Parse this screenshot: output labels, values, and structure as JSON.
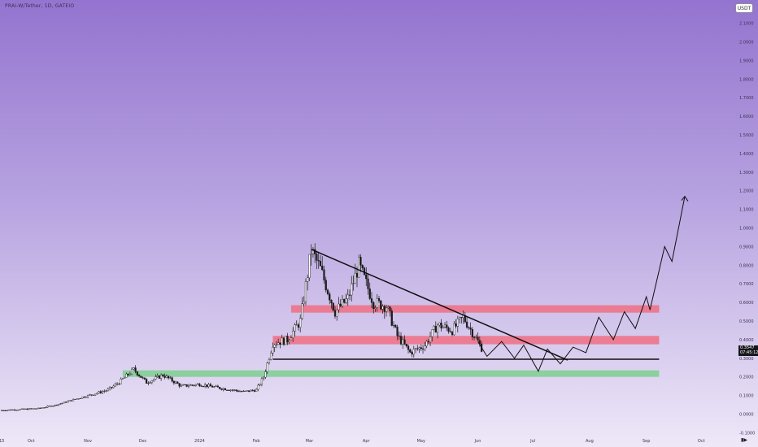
{
  "header": {
    "symbol_title": "PRAI-W/Tether, 1D, GATEIO"
  },
  "currency_button": {
    "label": "USDT"
  },
  "last_price": {
    "value": "0.3547",
    "countdown": "07:45:12"
  },
  "colors": {
    "candle": "#1a1a1a",
    "resistance_zone": "#ee6f82",
    "support_zone": "#7dcf8f",
    "trendline": "#101010",
    "projection": "#101010"
  },
  "chart_data": {
    "type": "candlestick",
    "title": "",
    "xlabel": "",
    "ylabel": "",
    "ylim": [
      -0.1,
      2.15
    ],
    "y_ticks": [
      "-0.1000",
      "0.0000",
      "0.1000",
      "0.2000",
      "0.3000",
      "0.4000",
      "0.5000",
      "0.6000",
      "0.7000",
      "0.8000",
      "0.9000",
      "1.0000",
      "1.1000",
      "1.2000",
      "1.3000",
      "1.4000",
      "1.5000",
      "1.6000",
      "1.7000",
      "1.8000",
      "1.9000",
      "2.0000",
      "2.1000"
    ],
    "x_ticks": [
      {
        "label": "15",
        "date": "2023-09-15"
      },
      {
        "label": "Oct",
        "date": "2023-10-01"
      },
      {
        "label": "Nov",
        "date": "2023-11-01"
      },
      {
        "label": "Dec",
        "date": "2023-12-01"
      },
      {
        "label": "2024",
        "date": "2024-01-01"
      },
      {
        "label": "Feb",
        "date": "2024-02-01"
      },
      {
        "label": "Mar",
        "date": "2024-03-01"
      },
      {
        "label": "Apr",
        "date": "2024-04-01"
      },
      {
        "label": "May",
        "date": "2024-05-01"
      },
      {
        "label": "Jun",
        "date": "2024-06-01"
      },
      {
        "label": "Jul",
        "date": "2024-07-01"
      },
      {
        "label": "Aug",
        "date": "2024-08-01"
      },
      {
        "label": "Sep",
        "date": "2024-09-01"
      },
      {
        "label": "Oct",
        "date": "2024-10-01"
      }
    ],
    "x_range": [
      "2023-09-14",
      "2024-10-16"
    ],
    "price_path": [
      [
        "2023-09-15",
        0.02
      ],
      [
        "2023-09-25",
        0.025
      ],
      [
        "2023-10-05",
        0.03
      ],
      [
        "2023-10-15",
        0.05
      ],
      [
        "2023-10-25",
        0.08
      ],
      [
        "2023-11-05",
        0.11
      ],
      [
        "2023-11-12",
        0.13
      ],
      [
        "2023-11-18",
        0.17
      ],
      [
        "2023-11-26",
        0.24
      ],
      [
        "2023-12-03",
        0.17
      ],
      [
        "2023-12-12",
        0.21
      ],
      [
        "2023-12-22",
        0.15
      ],
      [
        "2024-01-01",
        0.16
      ],
      [
        "2024-01-12",
        0.14
      ],
      [
        "2024-01-25",
        0.12
      ],
      [
        "2024-02-01",
        0.13
      ],
      [
        "2024-02-05",
        0.2
      ],
      [
        "2024-02-10",
        0.38
      ],
      [
        "2024-02-18",
        0.4
      ],
      [
        "2024-02-25",
        0.5
      ],
      [
        "2024-03-02",
        0.88
      ],
      [
        "2024-03-07",
        0.78
      ],
      [
        "2024-03-15",
        0.55
      ],
      [
        "2024-03-22",
        0.62
      ],
      [
        "2024-03-28",
        0.8
      ],
      [
        "2024-04-05",
        0.6
      ],
      [
        "2024-04-12",
        0.58
      ],
      [
        "2024-04-18",
        0.42
      ],
      [
        "2024-04-25",
        0.33
      ],
      [
        "2024-05-03",
        0.37
      ],
      [
        "2024-05-10",
        0.48
      ],
      [
        "2024-05-18",
        0.45
      ],
      [
        "2024-05-24",
        0.52
      ],
      [
        "2024-06-01",
        0.39
      ],
      [
        "2024-06-03",
        0.3547
      ]
    ],
    "resistance_zones": [
      {
        "from": "2024-02-20",
        "to": "2024-09-08",
        "low": 0.545,
        "high": 0.585
      },
      {
        "from": "2024-02-10",
        "to": "2024-09-08",
        "low": 0.375,
        "high": 0.42
      }
    ],
    "support_zones": [
      {
        "from": "2023-11-20",
        "to": "2024-09-08",
        "low": 0.2,
        "high": 0.235
      }
    ],
    "trendlines": [
      {
        "from": [
          "2024-03-02",
          0.885
        ],
        "to": [
          "2024-07-20",
          0.29
        ]
      },
      {
        "from": [
          "2024-02-10",
          0.295
        ],
        "to": [
          "2024-09-08",
          0.295
        ]
      }
    ],
    "projection_path": [
      [
        "2024-06-01",
        0.39
      ],
      [
        "2024-06-06",
        0.31
      ],
      [
        "2024-06-14",
        0.39
      ],
      [
        "2024-06-21",
        0.3
      ],
      [
        "2024-06-26",
        0.37
      ],
      [
        "2024-07-04",
        0.23
      ],
      [
        "2024-07-09",
        0.35
      ],
      [
        "2024-07-16",
        0.27
      ],
      [
        "2024-07-23",
        0.36
      ],
      [
        "2024-07-30",
        0.33
      ],
      [
        "2024-08-06",
        0.52
      ],
      [
        "2024-08-14",
        0.4
      ],
      [
        "2024-08-20",
        0.55
      ],
      [
        "2024-08-26",
        0.46
      ],
      [
        "2024-09-01",
        0.63
      ],
      [
        "2024-09-03",
        0.56
      ],
      [
        "2024-09-11",
        0.9
      ],
      [
        "2024-09-15",
        0.82
      ],
      [
        "2024-09-22",
        1.17
      ]
    ]
  }
}
